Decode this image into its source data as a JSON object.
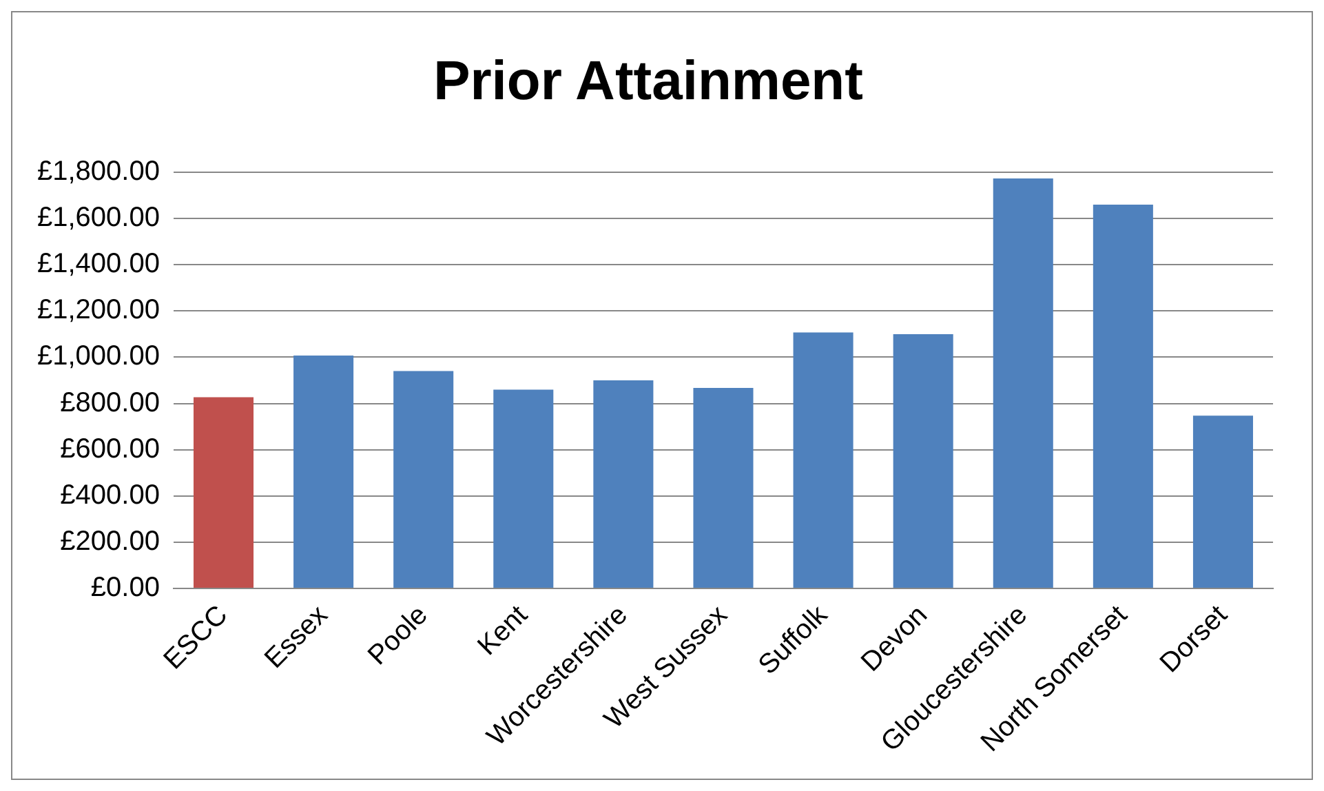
{
  "chart_data": {
    "type": "bar",
    "title": "Prior Attainment",
    "categories": [
      "ESCC",
      "Essex",
      "Poole",
      "Kent",
      "Worcestershire",
      "West Sussex",
      "Suffolk",
      "Devon",
      "Gloucestershire",
      "North Somerset",
      "Dorset"
    ],
    "values": [
      827,
      1007,
      940,
      860,
      900,
      867,
      1107,
      1100,
      1773,
      1660,
      747
    ],
    "colors": [
      "#c0504d",
      "#4f81bd",
      "#4f81bd",
      "#4f81bd",
      "#4f81bd",
      "#4f81bd",
      "#4f81bd",
      "#4f81bd",
      "#4f81bd",
      "#4f81bd",
      "#4f81bd"
    ],
    "ylim": [
      0,
      1800
    ],
    "yticks": [
      {
        "value": 0,
        "label": "£0.00"
      },
      {
        "value": 200,
        "label": "£200.00"
      },
      {
        "value": 400,
        "label": "£400.00"
      },
      {
        "value": 600,
        "label": "£600.00"
      },
      {
        "value": 800,
        "label": "£800.00"
      },
      {
        "value": 1000,
        "label": "£1,000.00"
      },
      {
        "value": 1200,
        "label": "£1,200.00"
      },
      {
        "value": 1400,
        "label": "£1,400.00"
      },
      {
        "value": 1600,
        "label": "£1,600.00"
      },
      {
        "value": 1800,
        "label": "£1,800.00"
      }
    ],
    "grid": "y",
    "legend": false
  }
}
